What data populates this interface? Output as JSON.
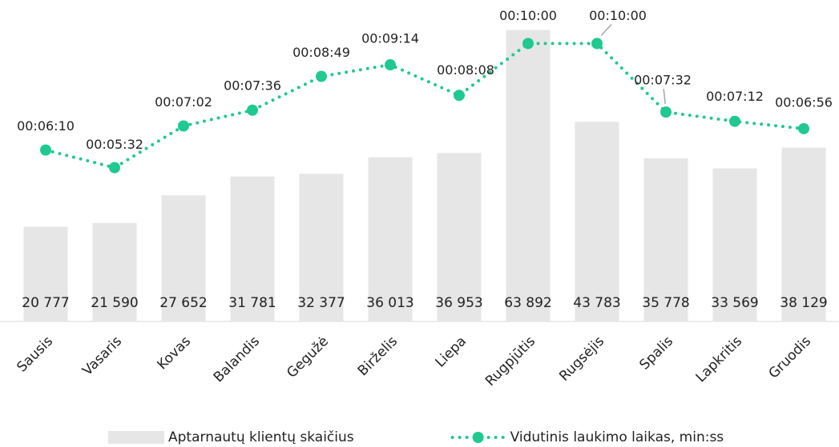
{
  "chart_data": {
    "type": "bar_line",
    "categories": [
      "Sausis",
      "Vasaris",
      "Kovas",
      "Balandis",
      "Gegužė",
      "Birželis",
      "Liepa",
      "Rugpjūtis",
      "Rugsėjis",
      "Spalis",
      "Lapkritis",
      "Gruodis"
    ],
    "series": [
      {
        "name": "Aptarnautų klientų skaičius",
        "type": "bar",
        "color": "#e7e6e6",
        "values": [
          20777,
          21590,
          27652,
          31781,
          32377,
          36013,
          36953,
          63892,
          43783,
          35778,
          33569,
          38129
        ],
        "value_labels": [
          "20 777",
          "21 590",
          "27 652",
          "31 781",
          "32 377",
          "36 013",
          "36 953",
          "63 892",
          "43 783",
          "35 778",
          "33 569",
          "38 129"
        ]
      },
      {
        "name": "Vidutinis laukimo laikas, min:ss",
        "type": "line",
        "axis": "y2",
        "color": "#1fc98f",
        "values": [
          370,
          332,
          422,
          456,
          529,
          554,
          488,
          600,
          600,
          452,
          432,
          416
        ],
        "value_labels": [
          "00:06:10",
          "00:05:32",
          "00:07:02",
          "00:07:36",
          "00:08:49",
          "00:09:14",
          "00:08:08",
          "00:10:00",
          "00:10:00",
          "00:07:32",
          "00:07:12",
          "00:06:56"
        ]
      }
    ],
    "ylim": [
      0,
      64000
    ],
    "y2lim": [
      0,
      630
    ],
    "legend": "bottom"
  }
}
